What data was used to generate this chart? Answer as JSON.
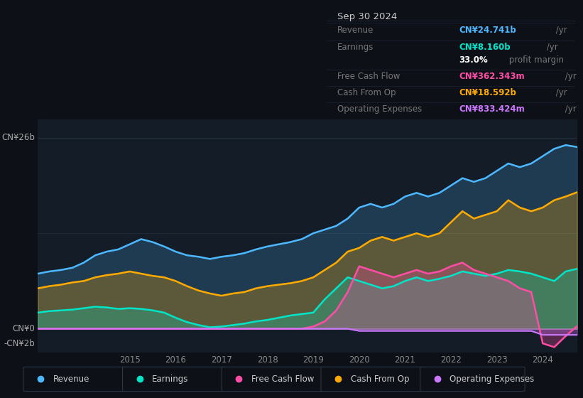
{
  "bg_color": "#0d1117",
  "plot_bg_color": "#131c27",
  "grid_color": "#1e2d3d",
  "title_box": {
    "date": "Sep 30 2024",
    "rows": [
      {
        "label": "Revenue",
        "value": "CN¥24.741b",
        "unit": " /yr",
        "color": "#4db8ff"
      },
      {
        "label": "Earnings",
        "value": "CN¥8.160b",
        "unit": " /yr",
        "color": "#00e5c8"
      },
      {
        "label": "",
        "value": "33.0%",
        "unit": " profit margin",
        "color": "#ffffff"
      },
      {
        "label": "Free Cash Flow",
        "value": "CN¥362.343m",
        "unit": " /yr",
        "color": "#ff4da6"
      },
      {
        "label": "Cash From Op",
        "value": "CN¥18.592b",
        "unit": " /yr",
        "color": "#ffaa00"
      },
      {
        "label": "Operating Expenses",
        "value": "CN¥833.424m",
        "unit": " /yr",
        "color": "#cc77ff"
      }
    ]
  },
  "ylim": [
    -3.2,
    28.5
  ],
  "y_labels": [
    {
      "val": 26,
      "text": "CN¥26b"
    },
    {
      "val": 0,
      "text": "CN¥0"
    },
    {
      "val": -2,
      "text": "-CN¥2b"
    }
  ],
  "xtick_years": [
    2015,
    2016,
    2017,
    2018,
    2019,
    2020,
    2021,
    2022,
    2023,
    2024
  ],
  "legend": [
    {
      "label": "Revenue",
      "color": "#4db8ff"
    },
    {
      "label": "Earnings",
      "color": "#00e5c8"
    },
    {
      "label": "Free Cash Flow",
      "color": "#ff4da6"
    },
    {
      "label": "Cash From Op",
      "color": "#ffaa00"
    },
    {
      "label": "Operating Expenses",
      "color": "#cc77ff"
    }
  ],
  "series": {
    "x": [
      2013.0,
      2013.25,
      2013.5,
      2013.75,
      2014.0,
      2014.25,
      2014.5,
      2014.75,
      2015.0,
      2015.25,
      2015.5,
      2015.75,
      2016.0,
      2016.25,
      2016.5,
      2016.75,
      2017.0,
      2017.25,
      2017.5,
      2017.75,
      2018.0,
      2018.25,
      2018.5,
      2018.75,
      2019.0,
      2019.25,
      2019.5,
      2019.75,
      2020.0,
      2020.25,
      2020.5,
      2020.75,
      2021.0,
      2021.25,
      2021.5,
      2021.75,
      2022.0,
      2022.25,
      2022.5,
      2022.75,
      2023.0,
      2023.25,
      2023.5,
      2023.75,
      2024.0,
      2024.25,
      2024.5,
      2024.75
    ],
    "revenue": [
      7.5,
      7.8,
      8.0,
      8.3,
      9.0,
      10.0,
      10.5,
      10.8,
      11.5,
      12.2,
      11.8,
      11.2,
      10.5,
      10.0,
      9.8,
      9.5,
      9.8,
      10.0,
      10.3,
      10.8,
      11.2,
      11.5,
      11.8,
      12.2,
      13.0,
      13.5,
      14.0,
      15.0,
      16.5,
      17.0,
      16.5,
      17.0,
      18.0,
      18.5,
      18.0,
      18.5,
      19.5,
      20.5,
      20.0,
      20.5,
      21.5,
      22.5,
      22.0,
      22.5,
      23.5,
      24.5,
      25.0,
      24.741
    ],
    "earnings": [
      2.2,
      2.4,
      2.5,
      2.6,
      2.8,
      3.0,
      2.9,
      2.7,
      2.8,
      2.7,
      2.5,
      2.2,
      1.5,
      0.9,
      0.5,
      0.2,
      0.3,
      0.5,
      0.7,
      1.0,
      1.2,
      1.5,
      1.8,
      2.0,
      2.2,
      4.0,
      5.5,
      7.0,
      6.5,
      6.0,
      5.5,
      5.8,
      6.5,
      7.0,
      6.5,
      6.8,
      7.2,
      7.8,
      7.5,
      7.2,
      7.5,
      8.0,
      7.8,
      7.5,
      7.0,
      6.5,
      7.8,
      8.16
    ],
    "free_cash_flow": [
      0.0,
      0.0,
      0.0,
      0.0,
      0.0,
      0.0,
      0.0,
      0.0,
      0.0,
      0.0,
      0.0,
      0.0,
      0.0,
      0.0,
      0.0,
      0.0,
      0.0,
      0.0,
      0.0,
      0.0,
      0.0,
      0.0,
      0.0,
      0.0,
      0.3,
      1.0,
      2.5,
      5.0,
      8.5,
      8.0,
      7.5,
      7.0,
      7.5,
      8.0,
      7.5,
      7.8,
      8.5,
      9.0,
      8.0,
      7.5,
      7.0,
      6.5,
      5.5,
      5.0,
      -2.0,
      -2.5,
      -1.0,
      0.362
    ],
    "cash_from_op": [
      5.5,
      5.8,
      6.0,
      6.3,
      6.5,
      7.0,
      7.3,
      7.5,
      7.8,
      7.5,
      7.2,
      7.0,
      6.5,
      5.8,
      5.2,
      4.8,
      4.5,
      4.8,
      5.0,
      5.5,
      5.8,
      6.0,
      6.2,
      6.5,
      7.0,
      8.0,
      9.0,
      10.5,
      11.0,
      12.0,
      12.5,
      12.0,
      12.5,
      13.0,
      12.5,
      13.0,
      14.5,
      16.0,
      15.0,
      15.5,
      16.0,
      17.5,
      16.5,
      16.0,
      16.5,
      17.5,
      18.0,
      18.592
    ],
    "operating_expenses": [
      0.0,
      0.0,
      0.0,
      0.0,
      0.0,
      0.0,
      0.0,
      0.0,
      0.0,
      0.0,
      0.0,
      0.0,
      0.0,
      0.0,
      0.0,
      0.0,
      0.0,
      0.0,
      0.0,
      0.0,
      0.0,
      0.0,
      0.0,
      0.0,
      0.0,
      0.0,
      0.0,
      0.0,
      -0.3,
      -0.3,
      -0.3,
      -0.3,
      -0.3,
      -0.3,
      -0.3,
      -0.3,
      -0.3,
      -0.3,
      -0.3,
      -0.3,
      -0.3,
      -0.3,
      -0.3,
      -0.3,
      -0.833,
      -0.833,
      -0.833,
      -0.833
    ]
  }
}
